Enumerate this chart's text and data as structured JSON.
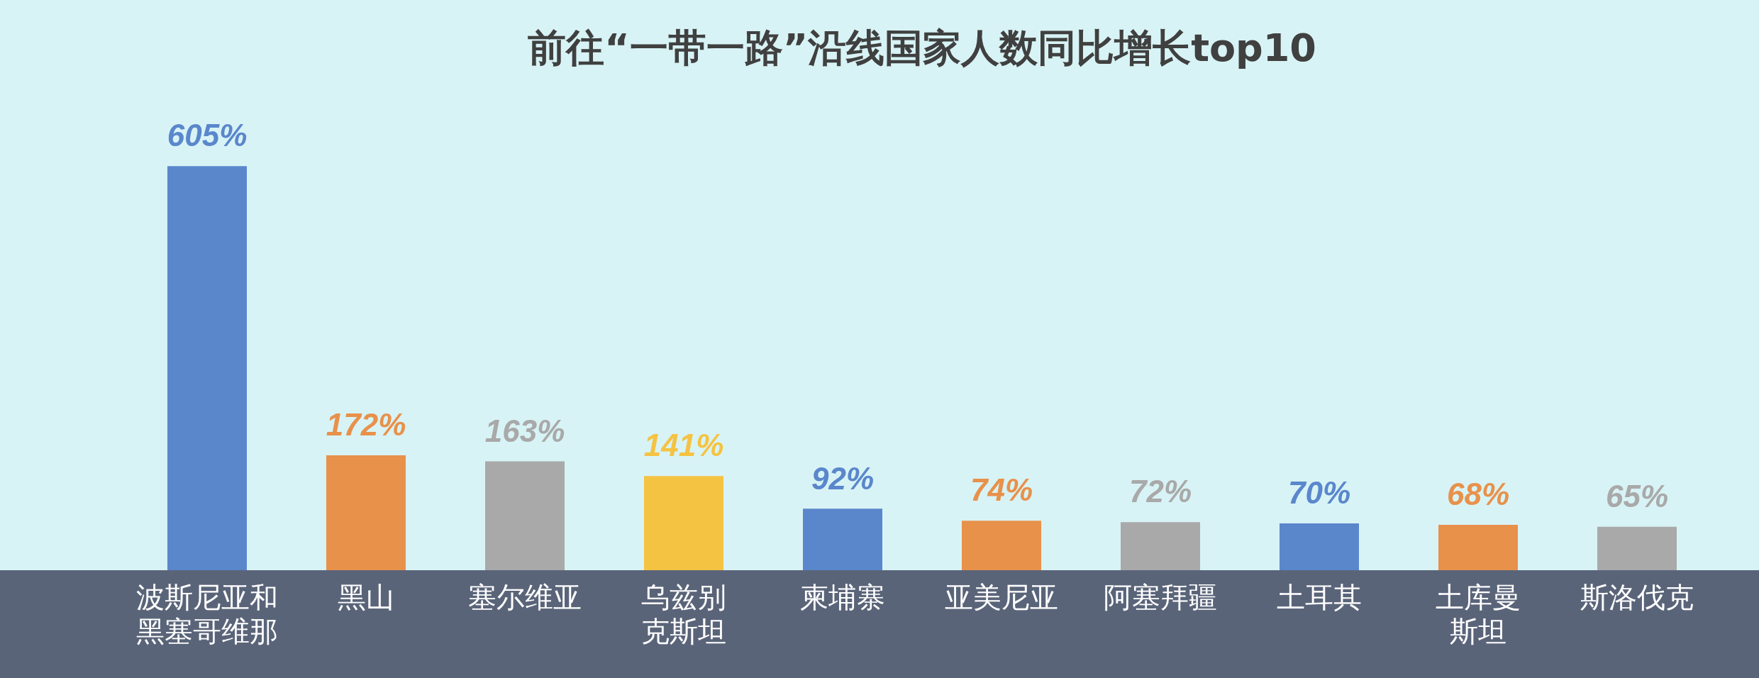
{
  "chart_data": {
    "type": "bar",
    "title": "前往“一带一路”沿线国家人数同比增长top10",
    "categories": [
      "波斯尼亚和黑塞哥维那",
      "黑山",
      "塞尔维亚",
      "乌兹别克斯坦",
      "柬埔寨",
      "亚美尼亚",
      "阿塞拜疆",
      "土耳其",
      "土库曼斯坦",
      "斯洛伐克"
    ],
    "values": [
      605,
      172,
      163,
      141,
      92,
      74,
      72,
      70,
      68,
      65
    ],
    "colors": [
      "#5a87cc",
      "#e8914b",
      "#a9a9a9",
      "#f5c342",
      "#5a87cc",
      "#e8914b",
      "#a9a9a9",
      "#5a87cc",
      "#e8914b",
      "#a9a9a9"
    ],
    "value_labels": [
      "605%",
      "172%",
      "163%",
      "141%",
      "92%",
      "74%",
      "72%",
      "70%",
      "68%",
      "65%"
    ],
    "grid": false,
    "legend": false
  }
}
